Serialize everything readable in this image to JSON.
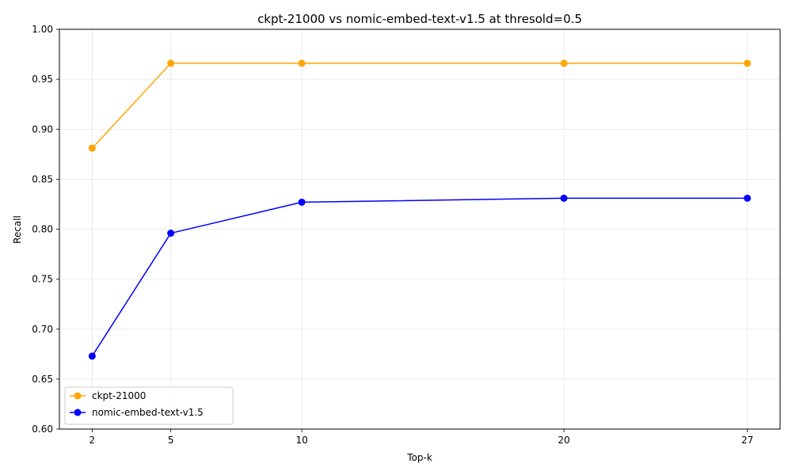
{
  "chart_data": {
    "type": "line",
    "title": "ckpt-21000 vs nomic-embed-text-v1.5 at thresold=0.5",
    "xlabel": "Top-k",
    "ylabel": "Recall",
    "x": [
      2,
      5,
      10,
      20,
      27
    ],
    "xlim": [
      0.75,
      28.25
    ],
    "ylim": [
      0.6,
      1.0
    ],
    "xticks": [
      "2",
      "5",
      "10",
      "20",
      "27"
    ],
    "yticks": [
      "0.60",
      "0.65",
      "0.70",
      "0.75",
      "0.80",
      "0.85",
      "0.90",
      "0.95",
      "1.00"
    ],
    "grid": true,
    "legend_position": "lower-left",
    "series": [
      {
        "name": "ckpt-21000",
        "color": "#ffa500",
        "values": [
          0.881,
          0.966,
          0.966,
          0.966,
          0.966
        ]
      },
      {
        "name": "nomic-embed-text-v1.5",
        "color": "#0000ff",
        "values": [
          0.673,
          0.796,
          0.827,
          0.831,
          0.831
        ]
      }
    ]
  }
}
